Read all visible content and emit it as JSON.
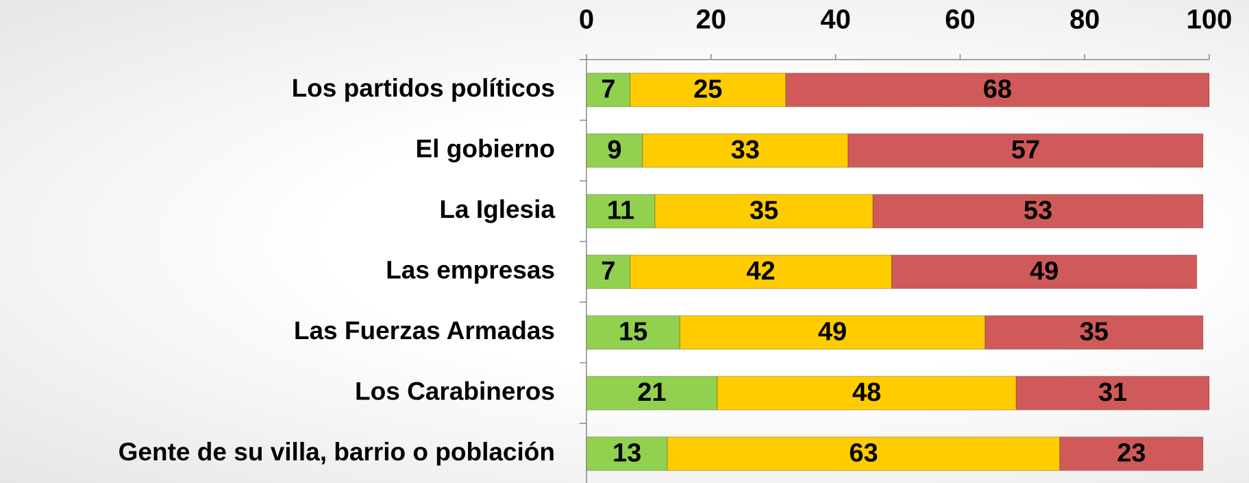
{
  "chart_data": {
    "type": "stacked-bar",
    "categories": [
      "Los partidos políticos",
      "El gobierno",
      "La Iglesia",
      "Las empresas",
      "Las Fuerzas Armadas",
      "Los Carabineros",
      "Gente de su villa, barrio o población"
    ],
    "series": [
      {
        "color": "#92d050",
        "values": [
          7,
          9,
          11,
          7,
          15,
          21,
          13
        ]
      },
      {
        "color": "#ffcc00",
        "values": [
          25,
          33,
          35,
          42,
          49,
          48,
          63
        ]
      },
      {
        "color": "#d05a5a",
        "values": [
          68,
          57,
          53,
          49,
          35,
          31,
          23
        ]
      }
    ],
    "xlim": [
      0,
      100
    ],
    "xticks": [
      0,
      20,
      40,
      60,
      80,
      100
    ],
    "axis_position": "top"
  }
}
